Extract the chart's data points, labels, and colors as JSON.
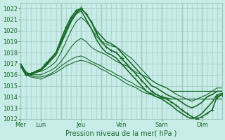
{
  "bg_color": "#c8ece8",
  "grid_color": "#a0c8c0",
  "line_color": "#1a6b2a",
  "title_label": "Pression niveau de la mer( hPa )",
  "x_labels": [
    "Mer",
    "Lun",
    "Jeu",
    "Ven",
    "Sam",
    "Dim"
  ],
  "x_positions": [
    0,
    24,
    72,
    120,
    168,
    216
  ],
  "ylim": [
    1012,
    1022.5
  ],
  "yticks": [
    1012,
    1013,
    1014,
    1015,
    1016,
    1017,
    1018,
    1019,
    1020,
    1021,
    1022
  ],
  "total_hours": 240,
  "series": [
    [
      1016.8,
      1016.0,
      1016.1,
      1016.3,
      1016.5,
      1017.0,
      1017.5,
      1018.0,
      1019.2,
      1020.3,
      1021.2,
      1021.8,
      1022.0,
      1021.5,
      1020.8,
      1019.8,
      1019.0,
      1018.5,
      1018.2,
      1018.0,
      1017.5,
      1017.0,
      1016.5,
      1016.0,
      1015.5,
      1015.0,
      1014.5,
      1014.2,
      1014.0,
      1013.8,
      1013.5,
      1013.2,
      1012.8,
      1012.5,
      1012.2,
      1012.0,
      1012.2,
      1012.5,
      1012.8,
      1014.0,
      1014.2
    ],
    [
      1016.8,
      1016.0,
      1016.0,
      1016.2,
      1016.4,
      1016.8,
      1017.3,
      1017.8,
      1018.8,
      1019.8,
      1020.8,
      1021.5,
      1021.8,
      1021.0,
      1020.2,
      1019.2,
      1018.5,
      1018.0,
      1017.8,
      1017.5,
      1017.0,
      1016.5,
      1016.0,
      1015.5,
      1015.0,
      1014.5,
      1014.2,
      1014.0,
      1013.8,
      1013.5,
      1013.2,
      1012.8,
      1012.5,
      1012.2,
      1012.0,
      1012.2,
      1012.5,
      1013.0,
      1013.5,
      1014.2,
      1014.3
    ],
    [
      1016.9,
      1016.1,
      1016.1,
      1016.3,
      1016.5,
      1016.9,
      1017.4,
      1018.0,
      1019.0,
      1020.0,
      1021.0,
      1021.6,
      1022.0,
      1021.5,
      1020.8,
      1020.0,
      1019.5,
      1019.0,
      1018.8,
      1018.5,
      1018.0,
      1017.5,
      1017.0,
      1016.5,
      1016.0,
      1015.5,
      1015.0,
      1014.8,
      1014.5,
      1014.2,
      1014.0,
      1013.8,
      1013.5,
      1013.2,
      1013.0,
      1013.2,
      1013.5,
      1014.0,
      1014.2,
      1014.5,
      1014.5
    ],
    [
      1017.0,
      1016.2,
      1016.0,
      1016.2,
      1016.3,
      1016.5,
      1016.8,
      1017.2,
      1018.0,
      1019.0,
      1020.0,
      1020.8,
      1021.2,
      1020.8,
      1020.2,
      1019.5,
      1019.0,
      1018.8,
      1018.6,
      1018.5,
      1018.2,
      1017.8,
      1017.5,
      1017.0,
      1016.5,
      1016.0,
      1015.5,
      1015.2,
      1015.0,
      1014.8,
      1014.5,
      1014.2,
      1014.0,
      1013.8,
      1013.6,
      1013.8,
      1014.0,
      1014.2,
      1014.5,
      1014.8,
      1014.8
    ],
    [
      1017.0,
      1016.3,
      1016.0,
      1016.0,
      1016.0,
      1016.2,
      1016.4,
      1016.7,
      1017.2,
      1017.8,
      1018.5,
      1019.0,
      1019.3,
      1019.0,
      1018.5,
      1018.2,
      1018.0,
      1017.8,
      1017.5,
      1017.2,
      1017.0,
      1016.8,
      1016.5,
      1016.2,
      1016.0,
      1015.8,
      1015.5,
      1015.2,
      1015.0,
      1014.8,
      1014.5,
      1014.5,
      1014.5,
      1014.5,
      1014.5,
      1014.5,
      1014.5,
      1014.5,
      1014.5,
      1014.5,
      1014.5
    ],
    [
      1016.8,
      1016.0,
      1015.8,
      1015.7,
      1015.6,
      1015.8,
      1016.0,
      1016.2,
      1016.5,
      1016.8,
      1017.0,
      1017.2,
      1017.3,
      1017.2,
      1017.0,
      1016.8,
      1016.5,
      1016.3,
      1016.0,
      1015.8,
      1015.5,
      1015.2,
      1015.0,
      1014.8,
      1014.5,
      1014.3,
      1014.2,
      1014.0,
      1013.9,
      1013.8,
      1013.8,
      1013.8,
      1013.8,
      1013.8,
      1013.8,
      1013.8,
      1013.8,
      1013.8,
      1013.8,
      1013.8,
      1013.8
    ],
    [
      1016.9,
      1016.1,
      1015.9,
      1015.8,
      1015.8,
      1015.9,
      1016.1,
      1016.4,
      1016.8,
      1017.1,
      1017.4,
      1017.6,
      1017.7,
      1017.5,
      1017.2,
      1017.0,
      1016.8,
      1016.5,
      1016.3,
      1016.0,
      1015.8,
      1015.5,
      1015.3,
      1015.0,
      1014.8,
      1014.5,
      1014.3,
      1014.2,
      1014.0,
      1013.9,
      1013.8,
      1013.8,
      1013.8,
      1013.8,
      1013.8,
      1013.8,
      1013.8,
      1013.8,
      1013.8,
      1013.8,
      1013.8
    ]
  ]
}
